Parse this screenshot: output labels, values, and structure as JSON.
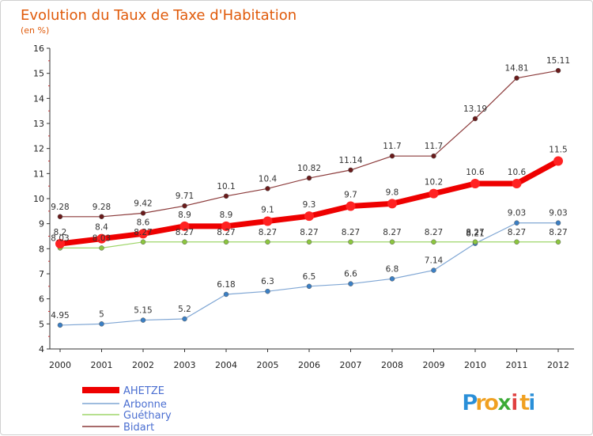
{
  "chart_data": {
    "type": "line",
    "title": "Evolution du Taux de Taxe d'Habitation",
    "subtitle": "(en %)",
    "xlabel": "",
    "ylabel": "",
    "ylim": [
      4,
      16
    ],
    "yticks": [
      "4",
      "5",
      "6",
      "7",
      "8",
      "9",
      "10",
      "11",
      "12",
      "13",
      "14",
      "15",
      "16"
    ],
    "categories": [
      "2000",
      "2001",
      "2002",
      "2003",
      "2004",
      "2005",
      "2006",
      "2007",
      "2008",
      "2009",
      "2010",
      "2011",
      "2012"
    ],
    "series": [
      {
        "name": "AHETZE",
        "color": "#ee0000",
        "values": [
          8.2,
          8.4,
          8.6,
          8.9,
          8.9,
          9.1,
          9.3,
          9.7,
          9.8,
          10.2,
          10.6,
          10.6,
          11.5
        ],
        "labels": [
          "8.2",
          "8.4",
          "8.6",
          "8.9",
          "8.9",
          "9.1",
          "9.3",
          "9.7",
          "9.8",
          "10.2",
          "10.6",
          "10.6",
          "11.5"
        ]
      },
      {
        "name": "Arbonne",
        "color": "#7fa6d4",
        "values": [
          4.95,
          5,
          5.15,
          5.2,
          6.18,
          6.3,
          6.5,
          6.6,
          6.8,
          7.14,
          8.21,
          9.03,
          9.03
        ],
        "labels": [
          "4.95",
          "5",
          "5.15",
          "5.2",
          "6.18",
          "6.3",
          "6.5",
          "6.6",
          "6.8",
          "7.14",
          "8.21",
          "9.03",
          "9.03"
        ]
      },
      {
        "name": "Guéthary",
        "color": "#9fd66a",
        "values": [
          8.03,
          8.03,
          8.27,
          8.27,
          8.27,
          8.27,
          8.27,
          8.27,
          8.27,
          8.27,
          8.27,
          8.27,
          8.27
        ],
        "labels": [
          "8.03",
          "8.03",
          "8.27",
          "8.27",
          "8.27",
          "8.27",
          "8.27",
          "8.27",
          "8.27",
          "8.27",
          "8.27",
          "8.27",
          "8.27"
        ]
      },
      {
        "name": "Bidart",
        "color": "#8b3a3a",
        "values": [
          9.28,
          9.28,
          9.42,
          9.71,
          10.1,
          10.4,
          10.82,
          11.14,
          11.7,
          11.7,
          13.19,
          14.81,
          15.11
        ],
        "labels": [
          "9.28",
          "9.28",
          "9.42",
          "9.71",
          "10.1",
          "10.4",
          "10.82",
          "11.14",
          "11.7",
          "11.7",
          "13.19",
          "14.81",
          "15.11"
        ]
      }
    ],
    "legend_position": "bottom-left",
    "grid": false
  },
  "logo": {
    "letters": [
      "P",
      "r",
      "o",
      "x",
      "i",
      "t",
      "i"
    ],
    "colors": [
      "#2a8fd8",
      "#f0a020",
      "#f0a020",
      "#3aaa35",
      "#e04040",
      "#f0a020",
      "#2a8fd8"
    ]
  }
}
